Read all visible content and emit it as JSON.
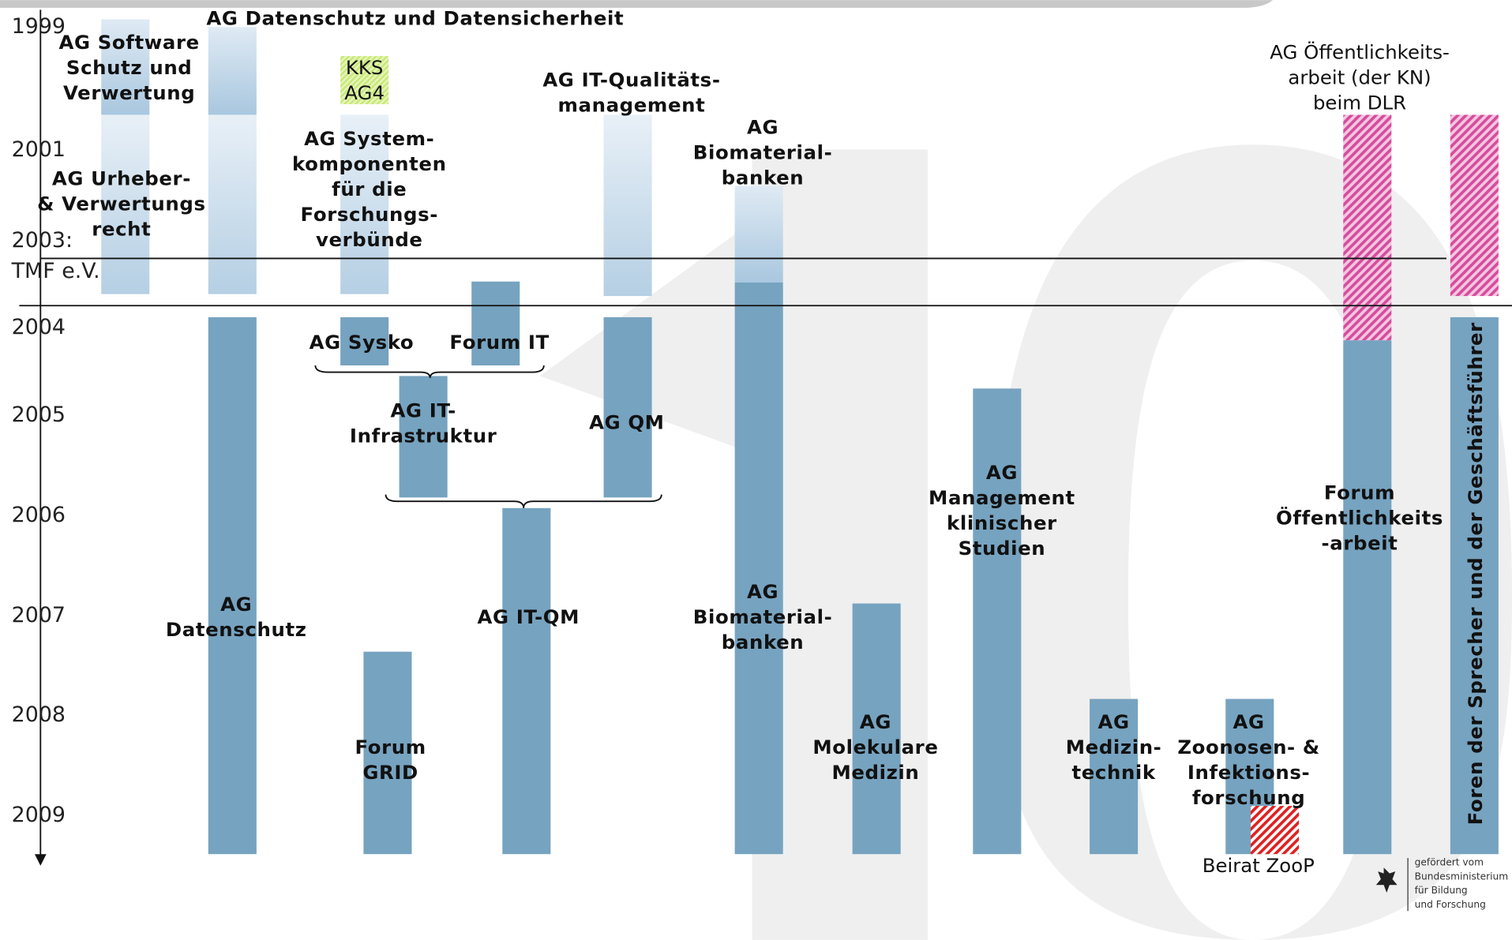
{
  "years": [
    "1999",
    "2001",
    "2003:",
    "TMF e.V.",
    "2004",
    "2005",
    "2006",
    "2007",
    "2008",
    "2009"
  ],
  "labels": [
    {
      "lines": [
        "AG Software",
        "Schutz und",
        "Verwertung"
      ]
    },
    {
      "lines": [
        "AG Datenschutz und Datensicherheit"
      ]
    },
    {
      "lines": [
        "KKS",
        "AG4"
      ]
    },
    {
      "lines": [
        "AG IT-Qualitäts-",
        "management"
      ]
    },
    {
      "lines": [
        "AG",
        "Biomaterial-",
        "banken"
      ]
    },
    {
      "lines": [
        "AG Öffentlichkeits-",
        "arbeit (der KN)",
        "beim DLR"
      ]
    },
    {
      "lines": [
        "AG Urheber-",
        "& Verwertungs",
        "recht"
      ]
    },
    {
      "lines": [
        "AG System-",
        "komponenten",
        "für die",
        "Forschungs-",
        "verbünde"
      ]
    },
    {
      "lines": [
        "AG Sysko"
      ]
    },
    {
      "lines": [
        "Forum IT"
      ]
    },
    {
      "lines": [
        "AG IT-",
        "Infrastruktur"
      ]
    },
    {
      "lines": [
        "AG QM"
      ]
    },
    {
      "lines": [
        "AG",
        "Management",
        "klinischer",
        "Studien"
      ]
    },
    {
      "lines": [
        "Forum",
        "Öffentlichkeits",
        "-arbeit"
      ]
    },
    {
      "lines": [
        "AG",
        "Datenschutz"
      ]
    },
    {
      "lines": [
        "AG IT-QM"
      ]
    },
    {
      "lines": [
        "AG",
        "Biomaterial-",
        "banken"
      ]
    },
    {
      "lines": [
        "AG",
        "Molekulare",
        "Medizin"
      ]
    },
    {
      "lines": [
        "Forum",
        "GRID"
      ]
    },
    {
      "lines": [
        "AG",
        "Medizin-",
        "technik"
      ]
    },
    {
      "lines": [
        "AG",
        "Zoonosen- &",
        "Infektions-",
        "forschung"
      ]
    },
    {
      "lines": [
        "Beirat ZooP"
      ]
    }
  ],
  "vertical_label": "Foren der Sprecher und der Geschäftsführer",
  "logo": {
    "lines": [
      "gefördert vom",
      "Bundesministerium",
      "für Bildung",
      "und Forschung"
    ]
  }
}
